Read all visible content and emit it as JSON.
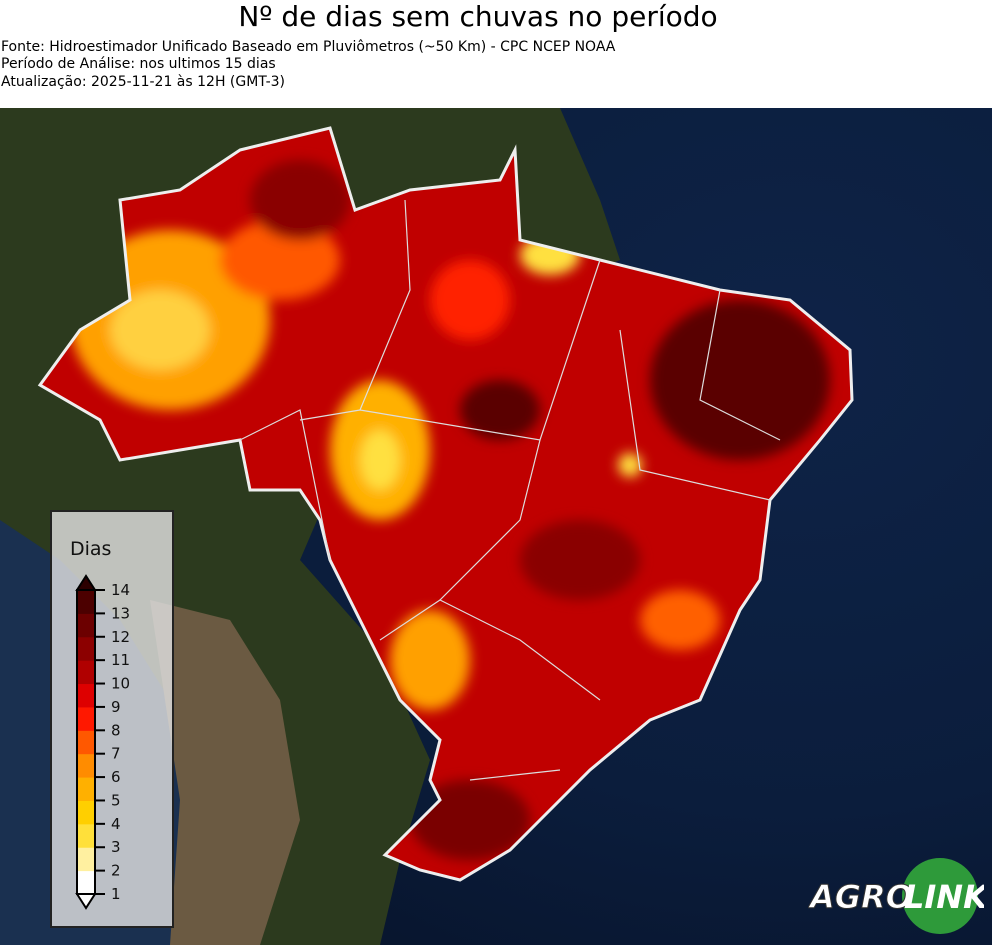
{
  "title": "Nº de dias sem chuvas no período",
  "source": "Fonte: Hidroestimador Unificado Baseado em Pluviômetros (~50 Km) - CPC NCEP NOAA",
  "period": "Período de Análise: nos ultimos 15 dias",
  "updated": "Atualização: 2025-11-21 às 12H (GMT-3)",
  "legend": {
    "title": "Dias",
    "ticks": [
      "1",
      "2",
      "3",
      "4",
      "5",
      "6",
      "7",
      "8",
      "9",
      "10",
      "11",
      "12",
      "13",
      "14"
    ],
    "colors": [
      "#ffffff",
      "#fff0a0",
      "#ffe03a",
      "#ffcf00",
      "#ffb000",
      "#ff8c00",
      "#ff5800",
      "#ff1800",
      "#de0000",
      "#b00000",
      "#8c0000",
      "#6c0000",
      "#4c0000"
    ],
    "over_color": "#2c0000",
    "under_color": "#ffffff"
  },
  "logo": {
    "text_left": "AGRO",
    "text_right": "LINK",
    "color": "#2e9a3a"
  }
}
